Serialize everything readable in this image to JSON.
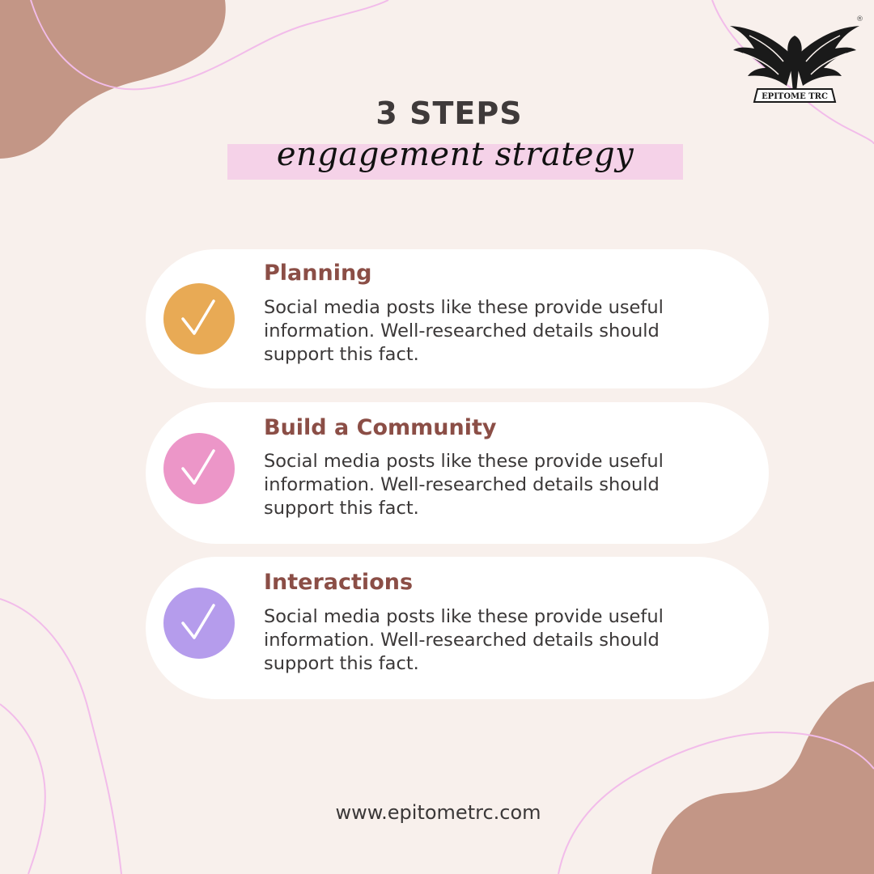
{
  "logo": {
    "text": "EPITOME TRC",
    "registered": "®",
    "icon": "eagle-emblem-icon"
  },
  "header": {
    "title": "3 STEPS",
    "subtitle": "engagement strategy"
  },
  "steps": [
    {
      "title": "Planning",
      "body": "Social media posts like these provide useful information. Well-researched details should support this fact.",
      "color": "#e8aa55",
      "icon": "checkmark-icon"
    },
    {
      "title": "Build a Community",
      "body": "Social media posts like these provide useful information. Well-researched details should support this fact.",
      "color": "#ec96c8",
      "icon": "checkmark-icon"
    },
    {
      "title": "Interactions",
      "body": "Social media posts like these provide useful information. Well-researched details should support this fact.",
      "color": "#b59cec",
      "icon": "checkmark-icon"
    }
  ],
  "footer": {
    "url": "www.epitometrc.com"
  },
  "colors": {
    "background": "#f8f0ec",
    "blob": "#c39686",
    "line": "#f2bcea",
    "highlight": "#f5d2e8",
    "title_accent": "#8b4e46"
  }
}
